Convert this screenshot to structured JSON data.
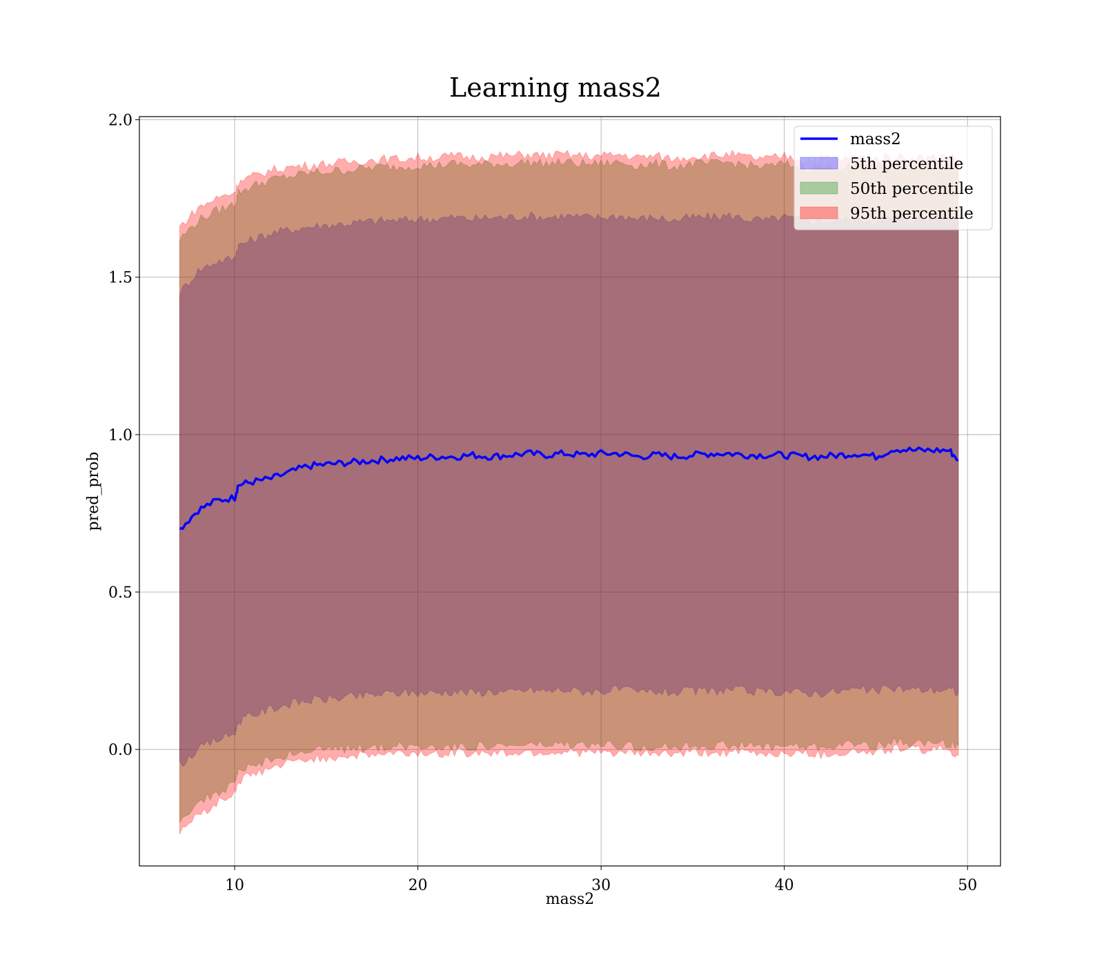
{
  "chart_data": {
    "type": "area",
    "title": "Learning mass2",
    "xlabel": "mass2",
    "ylabel": "pred_prob",
    "xlim": [
      4.8,
      51.8
    ],
    "ylim": [
      -0.37,
      2.01
    ],
    "xticks": [
      10,
      20,
      30,
      40,
      50
    ],
    "yticks": [
      0.0,
      0.5,
      1.0,
      1.5,
      2.0
    ],
    "xtick_labels": [
      "10",
      "20",
      "30",
      "40",
      "50"
    ],
    "ytick_labels": [
      "0.0",
      "0.5",
      "1.0",
      "1.5",
      "2.0"
    ],
    "grid": true,
    "legend_position": "top-right",
    "x": [
      7,
      8,
      9,
      10,
      10.2,
      11,
      12,
      13,
      14,
      15,
      16,
      17,
      18,
      19,
      20,
      21,
      22,
      23,
      24,
      25,
      26,
      27,
      28,
      29,
      30,
      31,
      32,
      33,
      34,
      35,
      36,
      37,
      38,
      39,
      40,
      41,
      42,
      43,
      44,
      45,
      46,
      47,
      48,
      49,
      49.5
    ],
    "series": [
      {
        "name": "mass2",
        "type": "line",
        "color": "#0000ff",
        "values": [
          0.7,
          0.76,
          0.79,
          0.8,
          0.84,
          0.85,
          0.86,
          0.88,
          0.9,
          0.905,
          0.91,
          0.915,
          0.92,
          0.925,
          0.925,
          0.93,
          0.93,
          0.935,
          0.93,
          0.935,
          0.94,
          0.935,
          0.94,
          0.935,
          0.94,
          0.94,
          0.93,
          0.935,
          0.93,
          0.935,
          0.94,
          0.94,
          0.935,
          0.935,
          0.935,
          0.93,
          0.93,
          0.935,
          0.94,
          0.93,
          0.955,
          0.95,
          0.95,
          0.95,
          0.92
        ]
      },
      {
        "name": "5th percentile",
        "type": "band",
        "color": "#0000ff",
        "upper": [
          1.45,
          1.52,
          1.55,
          1.56,
          1.6,
          1.62,
          1.64,
          1.65,
          1.66,
          1.665,
          1.67,
          1.675,
          1.68,
          1.68,
          1.685,
          1.685,
          1.69,
          1.685,
          1.69,
          1.69,
          1.695,
          1.69,
          1.695,
          1.69,
          1.69,
          1.695,
          1.685,
          1.69,
          1.68,
          1.69,
          1.69,
          1.695,
          1.685,
          1.68,
          1.69,
          1.68,
          1.68,
          1.68,
          1.685,
          1.68,
          1.69,
          1.685,
          1.685,
          1.69,
          1.68
        ],
        "lower": [
          -0.05,
          0.0,
          0.03,
          0.05,
          0.09,
          0.11,
          0.13,
          0.145,
          0.155,
          0.16,
          0.165,
          0.17,
          0.175,
          0.18,
          0.18,
          0.18,
          0.185,
          0.18,
          0.185,
          0.18,
          0.19,
          0.185,
          0.19,
          0.185,
          0.185,
          0.19,
          0.18,
          0.185,
          0.18,
          0.185,
          0.185,
          0.19,
          0.185,
          0.18,
          0.185,
          0.18,
          0.18,
          0.185,
          0.19,
          0.185,
          0.195,
          0.19,
          0.19,
          0.19,
          0.18
        ]
      },
      {
        "name": "50th percentile",
        "type": "band",
        "color": "#008000",
        "upper": [
          1.62,
          1.68,
          1.71,
          1.73,
          1.77,
          1.79,
          1.81,
          1.82,
          1.83,
          1.835,
          1.84,
          1.845,
          1.85,
          1.85,
          1.855,
          1.855,
          1.86,
          1.855,
          1.86,
          1.86,
          1.865,
          1.86,
          1.865,
          1.86,
          1.86,
          1.865,
          1.855,
          1.86,
          1.85,
          1.86,
          1.86,
          1.865,
          1.855,
          1.85,
          1.86,
          1.85,
          1.85,
          1.85,
          1.855,
          1.85,
          1.86,
          1.855,
          1.855,
          1.86,
          1.85
        ],
        "lower": [
          -0.22,
          -0.17,
          -0.14,
          -0.11,
          -0.07,
          -0.05,
          -0.03,
          -0.015,
          -0.005,
          0.0,
          0.003,
          0.006,
          0.008,
          0.01,
          0.01,
          0.01,
          0.012,
          0.01,
          0.012,
          0.01,
          0.015,
          0.012,
          0.015,
          0.012,
          0.012,
          0.015,
          0.008,
          0.012,
          0.008,
          0.012,
          0.012,
          0.015,
          0.012,
          0.008,
          0.012,
          0.008,
          0.008,
          0.012,
          0.018,
          0.012,
          0.025,
          0.02,
          0.02,
          0.02,
          0.01
        ]
      },
      {
        "name": "95th percentile",
        "type": "band",
        "color": "#ff0000",
        "upper": [
          1.66,
          1.72,
          1.75,
          1.77,
          1.8,
          1.82,
          1.84,
          1.85,
          1.855,
          1.86,
          1.865,
          1.87,
          1.875,
          1.875,
          1.88,
          1.88,
          1.885,
          1.88,
          1.885,
          1.885,
          1.89,
          1.885,
          1.89,
          1.885,
          1.885,
          1.89,
          1.88,
          1.885,
          1.875,
          1.885,
          1.885,
          1.89,
          1.88,
          1.875,
          1.885,
          1.875,
          1.875,
          1.875,
          1.88,
          1.875,
          1.885,
          1.88,
          1.88,
          1.885,
          1.875
        ],
        "lower": [
          -0.26,
          -0.21,
          -0.17,
          -0.14,
          -0.1,
          -0.08,
          -0.06,
          -0.045,
          -0.03,
          -0.025,
          -0.02,
          -0.018,
          -0.015,
          -0.012,
          -0.012,
          -0.012,
          -0.01,
          -0.012,
          -0.01,
          -0.012,
          -0.008,
          -0.01,
          -0.008,
          -0.01,
          -0.01,
          -0.008,
          -0.015,
          -0.01,
          -0.015,
          -0.01,
          -0.01,
          -0.008,
          -0.01,
          -0.015,
          -0.01,
          -0.015,
          -0.015,
          -0.01,
          -0.005,
          -0.01,
          0.005,
          0.0,
          0.0,
          0.0,
          -0.02
        ]
      }
    ]
  }
}
